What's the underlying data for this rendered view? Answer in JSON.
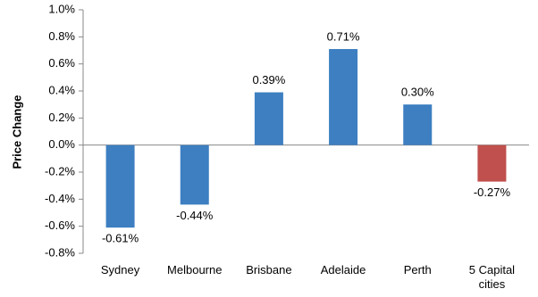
{
  "chart_data": {
    "type": "bar",
    "y_label": "Price Change",
    "categories": [
      "Sydney",
      "Melbourne",
      "Brisbane",
      "Adelaide",
      "Perth",
      "5 Capital cities"
    ],
    "values": [
      -0.61,
      -0.44,
      0.39,
      0.71,
      0.3,
      -0.27
    ],
    "value_labels": [
      "-0.61%",
      "-0.44%",
      "0.39%",
      "0.71%",
      "0.30%",
      "-0.27%"
    ],
    "colors": [
      "#3d7fc1",
      "#3d7fc1",
      "#3d7fc1",
      "#3d7fc1",
      "#3d7fc1",
      "#c0504d"
    ],
    "ylim": [
      -0.8,
      1.0
    ],
    "yticks": [
      {
        "value": -0.8,
        "label": "-0.8%"
      },
      {
        "value": -0.6,
        "label": "-0.6%"
      },
      {
        "value": -0.4,
        "label": "-0.4%"
      },
      {
        "value": -0.2,
        "label": "-0.2%"
      },
      {
        "value": 0,
        "label": "0.0%"
      },
      {
        "value": 0.2,
        "label": "0.2%"
      },
      {
        "value": 0.4,
        "label": "0.4%"
      },
      {
        "value": 0.6,
        "label": "0.6%"
      },
      {
        "value": 0.8,
        "label": "0.8%"
      },
      {
        "value": 1.0,
        "label": "1.0%"
      }
    ],
    "grid": false
  }
}
